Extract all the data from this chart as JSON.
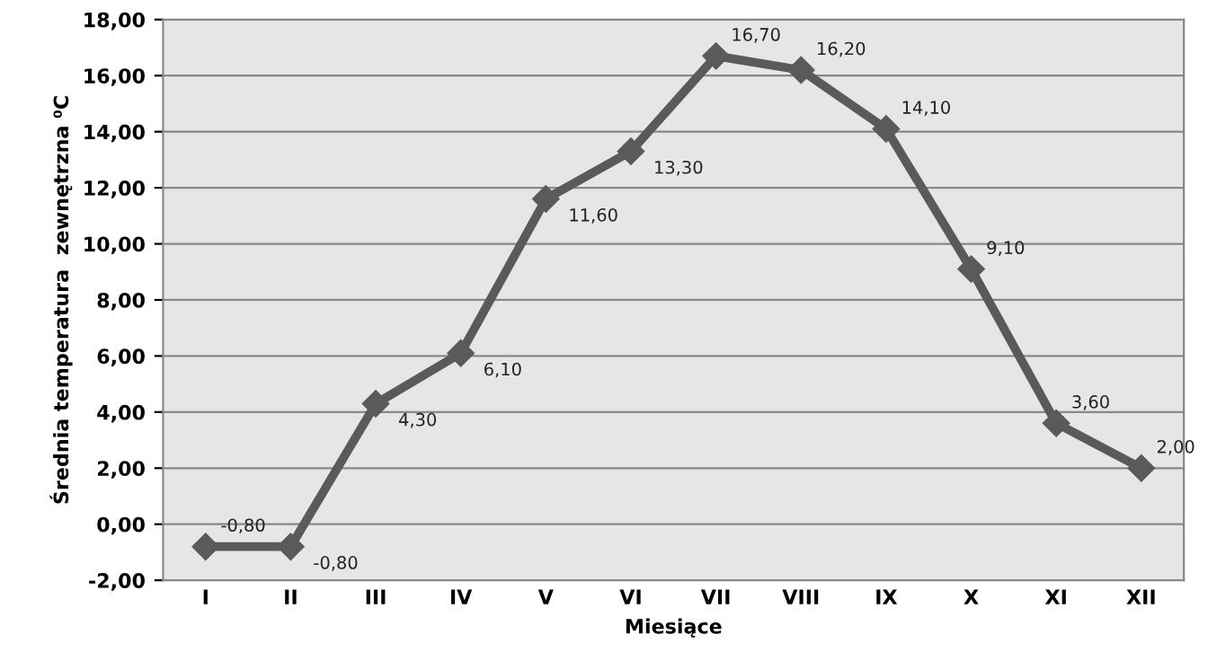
{
  "chart_data": {
    "type": "line",
    "xlabel": "Miesiące",
    "ylabel": "Średnia temperatura  zewnętrzna ⁰C",
    "categories": [
      "I",
      "II",
      "III",
      "IV",
      "V",
      "VI",
      "VII",
      "VIII",
      "IX",
      "X",
      "XI",
      "XII"
    ],
    "series": [
      {
        "color": "#5a5a5a",
        "values": [
          -0.8,
          -0.8,
          4.3,
          6.1,
          11.6,
          13.3,
          16.7,
          16.2,
          14.1,
          9.1,
          3.6,
          2.0
        ],
        "value_labels": [
          "-0,80",
          "-0,80",
          "4,30",
          "6,10",
          "11,60",
          "13,30",
          "16,70",
          "16,20",
          "14,10",
          "9,10",
          "3,60",
          "2,00"
        ]
      }
    ],
    "ylim": [
      -2,
      18
    ],
    "yticks": [
      {
        "value": -2,
        "label": "-2,00"
      },
      {
        "value": 0,
        "label": "0,00"
      },
      {
        "value": 2,
        "label": "2,00"
      },
      {
        "value": 4,
        "label": "4,00"
      },
      {
        "value": 6,
        "label": "6,00"
      },
      {
        "value": 8,
        "label": "8,00"
      },
      {
        "value": 10,
        "label": "10,00"
      },
      {
        "value": 12,
        "label": "12,00"
      },
      {
        "value": 14,
        "label": "14,00"
      },
      {
        "value": 16,
        "label": "16,00"
      },
      {
        "value": 18,
        "label": "18,00"
      }
    ],
    "grid": "y",
    "marker": "diamond",
    "line_style": "solid",
    "legend": false
  }
}
